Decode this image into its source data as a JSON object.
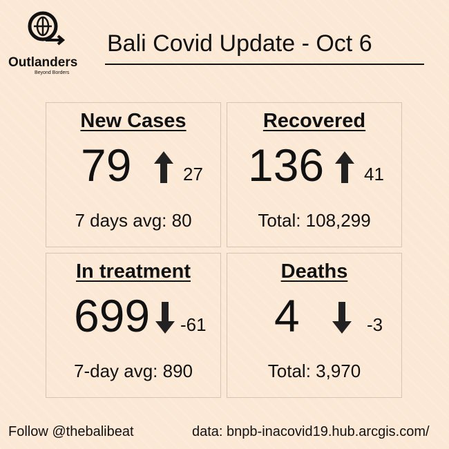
{
  "logo": {
    "name": "Outlanders",
    "tagline": "Beyond Borders"
  },
  "header": {
    "title": "Bali Covid Update - Oct 6"
  },
  "cards": [
    {
      "title": "New Cases",
      "value": "79",
      "change": "27",
      "footer": "7 days avg: 80"
    },
    {
      "title": "Recovered",
      "value": "136",
      "change": "41",
      "footer": "Total: 108,299"
    },
    {
      "title": "In treatment",
      "value": "699",
      "change": "-61",
      "footer": "7-day avg: 890"
    },
    {
      "title": "Deaths",
      "value": "4",
      "change": "-3",
      "footer": "Total: 3,970"
    }
  ],
  "footer": {
    "follow": "Follow @thebalibeat",
    "source": "data: bnpb-inacovid19.hub.arcgis.com/"
  }
}
